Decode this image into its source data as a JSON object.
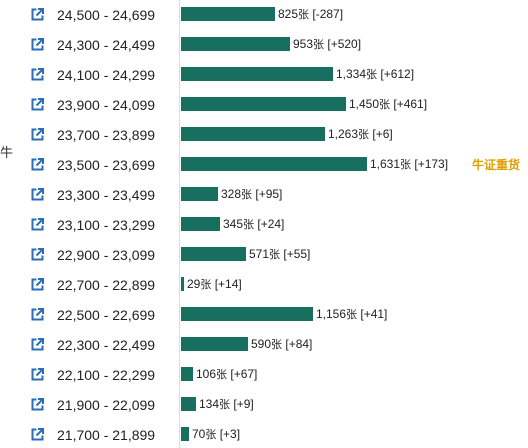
{
  "side_char": "牛",
  "colors": {
    "bar": "#17705f",
    "tag": "#e0a000",
    "icon": "#2a6ebb"
  },
  "max_bar_value": 1631,
  "rows": [
    {
      "range": "24,500 - 24,699",
      "value": 825,
      "count_text": "825",
      "unit": "张",
      "delta": " [-287]"
    },
    {
      "range": "24,300 - 24,499",
      "value": 953,
      "count_text": "953",
      "unit": "张",
      "delta": " [+520]"
    },
    {
      "range": "24,100 - 24,299",
      "value": 1334,
      "count_text": "1,334",
      "unit": "张",
      "delta": " [+612]"
    },
    {
      "range": "23,900 - 24,099",
      "value": 1450,
      "count_text": "1,450",
      "unit": "张",
      "delta": " [+461]"
    },
    {
      "range": "23,700 - 23,899",
      "value": 1263,
      "count_text": "1,263",
      "unit": "张",
      "delta": " [+6]"
    },
    {
      "range": "23,500 - 23,699",
      "value": 1631,
      "count_text": "1,631",
      "unit": "张",
      "delta": " [+173]",
      "tag": "牛证重货"
    },
    {
      "range": "23,300 - 23,499",
      "value": 328,
      "count_text": "328",
      "unit": "张",
      "delta": " [+95]"
    },
    {
      "range": "23,100 - 23,299",
      "value": 345,
      "count_text": "345",
      "unit": "张",
      "delta": " [+24]"
    },
    {
      "range": "22,900 - 23,099",
      "value": 571,
      "count_text": "571",
      "unit": "张",
      "delta": " [+55]"
    },
    {
      "range": "22,700 - 22,899",
      "value": 29,
      "count_text": "29",
      "unit": "张",
      "delta": " [+14]"
    },
    {
      "range": "22,500 - 22,699",
      "value": 1156,
      "count_text": "1,156",
      "unit": "张",
      "delta": " [+41]"
    },
    {
      "range": "22,300 - 22,499",
      "value": 590,
      "count_text": "590",
      "unit": "张",
      "delta": " [+84]"
    },
    {
      "range": "22,100 - 22,299",
      "value": 106,
      "count_text": "106",
      "unit": "张",
      "delta": " [+67]"
    },
    {
      "range": "21,900 - 22,099",
      "value": 134,
      "count_text": "134",
      "unit": "张",
      "delta": " [+9]"
    },
    {
      "range": "21,700 - 21,899",
      "value": 70,
      "count_text": "70",
      "unit": "张",
      "delta": " [+3]"
    }
  ]
}
